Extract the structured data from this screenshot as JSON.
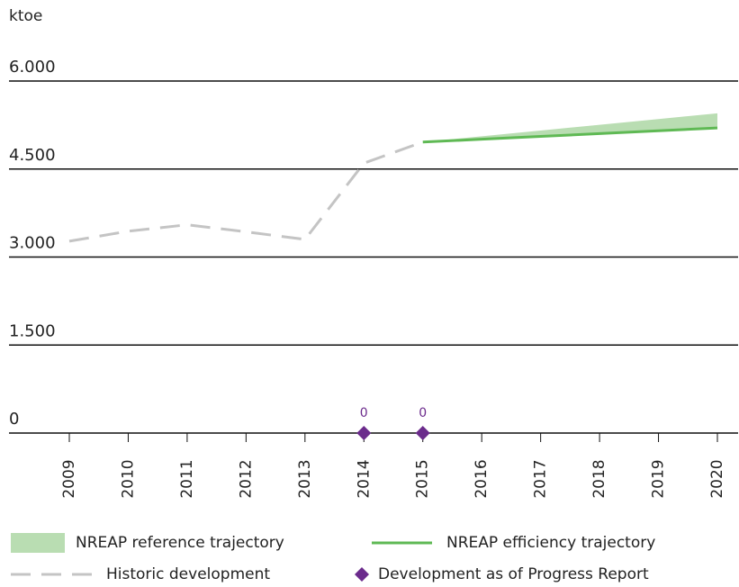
{
  "chart_data": {
    "type": "line",
    "y_label": "ktoe",
    "categories": [
      "2009",
      "2010",
      "2011",
      "2012",
      "2013",
      "2014",
      "2015",
      "2016",
      "2017",
      "2018",
      "2019",
      "2020"
    ],
    "ylim": [
      0,
      6000
    ],
    "yticks": [
      0,
      {
        "value": 1500,
        "label": "1.500"
      },
      {
        "value": 3000,
        "label": "3.000"
      },
      {
        "value": 4500,
        "label": "4.500"
      },
      {
        "value": 6000,
        "label": "6.000"
      }
    ],
    "grid": true,
    "legend": "bottom",
    "series": [
      {
        "name": "NREAP reference trajectory",
        "color": "#b9ddb2",
        "style": "band",
        "values": [
          null,
          null,
          null,
          null,
          null,
          null,
          4960,
          5058,
          5156,
          5254,
          5352,
          5450
        ]
      },
      {
        "name": "NREAP efficiency trajectory",
        "color": "#5fb954",
        "style": "line",
        "values": [
          null,
          null,
          null,
          null,
          null,
          null,
          4960,
          5008,
          5056,
          5104,
          5152,
          5200
        ]
      },
      {
        "name": "Historic development",
        "color": "#c4c4c4",
        "style": "dashed",
        "values": [
          3270,
          3440,
          3550,
          3430,
          3300,
          4600,
          4960,
          null,
          null,
          null,
          null,
          null
        ]
      },
      {
        "name": "Development as of Progress Report",
        "color": "#6b2b8c",
        "style": "marker",
        "values": [
          null,
          null,
          null,
          null,
          null,
          0,
          0,
          null,
          null,
          null,
          null,
          null
        ]
      }
    ]
  }
}
